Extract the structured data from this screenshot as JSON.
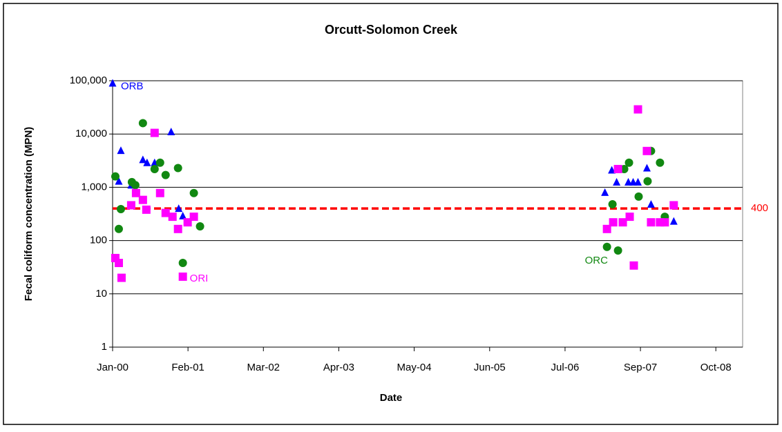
{
  "chart_data": {
    "type": "scatter",
    "title": "Orcutt-Solomon Creek",
    "x_label": "Date",
    "y_label": "Fecal coliform concentration (MPN)",
    "y_log": true,
    "grid": true,
    "xlim": [
      2000.0,
      2009.15
    ],
    "xticks": [
      {
        "value": 2000.0,
        "label": "Jan-00"
      },
      {
        "value": 2001.095,
        "label": "Feb-01"
      },
      {
        "value": 2002.19,
        "label": "Mar-02"
      },
      {
        "value": 2003.285,
        "label": "Apr-03"
      },
      {
        "value": 2004.38,
        "label": "May-04"
      },
      {
        "value": 2005.476,
        "label": "Jun-05"
      },
      {
        "value": 2006.571,
        "label": "Jul-06"
      },
      {
        "value": 2007.666,
        "label": "Sep-07"
      },
      {
        "value": 2008.761,
        "label": "Oct-08"
      }
    ],
    "ylim": [
      1,
      100000
    ],
    "yticks": [
      1,
      10,
      100,
      {
        "value": 1000,
        "label": "1,000"
      },
      {
        "value": 10000,
        "label": "10,000"
      },
      {
        "value": 100000,
        "label": "100,000"
      }
    ],
    "threshold": {
      "value": 400,
      "color": "#ff0000"
    },
    "series": [
      {
        "name": "ORB",
        "color": "#0000ff",
        "marker": "triangle",
        "x": [
          2000.0,
          2000.09,
          2000.12,
          2000.27,
          2000.44,
          2000.5,
          2000.61,
          2000.85,
          2000.96,
          2001.02,
          2007.15,
          2007.25,
          2007.32,
          2007.49,
          2007.56,
          2007.63,
          2007.76,
          2007.82,
          2008.15
        ],
        "values": [
          90000,
          1300,
          4900,
          1100,
          3300,
          2900,
          2900,
          11000,
          400,
          290,
          800,
          2100,
          1250,
          1250,
          1250,
          1250,
          2300,
          480,
          230
        ]
      },
      {
        "name": "ORC",
        "color": "#118811",
        "marker": "circle",
        "x": [
          2000.04,
          2000.09,
          2000.12,
          2000.28,
          2000.33,
          2000.44,
          2000.61,
          2000.69,
          2000.77,
          2000.95,
          2001.02,
          2001.18,
          2001.27,
          2007.18,
          2007.26,
          2007.34,
          2007.43,
          2007.5,
          2007.64,
          2007.77,
          2007.82,
          2007.95,
          2008.02
        ],
        "values": [
          1600,
          165,
          390,
          1250,
          1100,
          16000,
          2200,
          2900,
          1700,
          2300,
          38,
          780,
          185,
          76,
          480,
          65,
          2200,
          2900,
          670,
          1300,
          4800,
          2900,
          280
        ]
      },
      {
        "name": "ORI",
        "color": "#ff00ff",
        "marker": "square",
        "x": [
          2000.04,
          2000.09,
          2000.13,
          2000.27,
          2000.34,
          2000.44,
          2000.49,
          2000.61,
          2000.69,
          2000.77,
          2000.87,
          2000.95,
          2001.02,
          2001.09,
          2001.18,
          2007.18,
          2007.27,
          2007.34,
          2007.41,
          2007.51,
          2007.57,
          2007.63,
          2007.76,
          2007.82,
          2007.95,
          2008.02,
          2008.15
        ],
        "values": [
          47,
          38,
          20,
          460,
          780,
          580,
          380,
          10500,
          780,
          330,
          280,
          165,
          21,
          220,
          280,
          165,
          220,
          2200,
          220,
          280,
          34,
          29000,
          4800,
          220,
          220,
          220,
          460
        ]
      }
    ]
  }
}
